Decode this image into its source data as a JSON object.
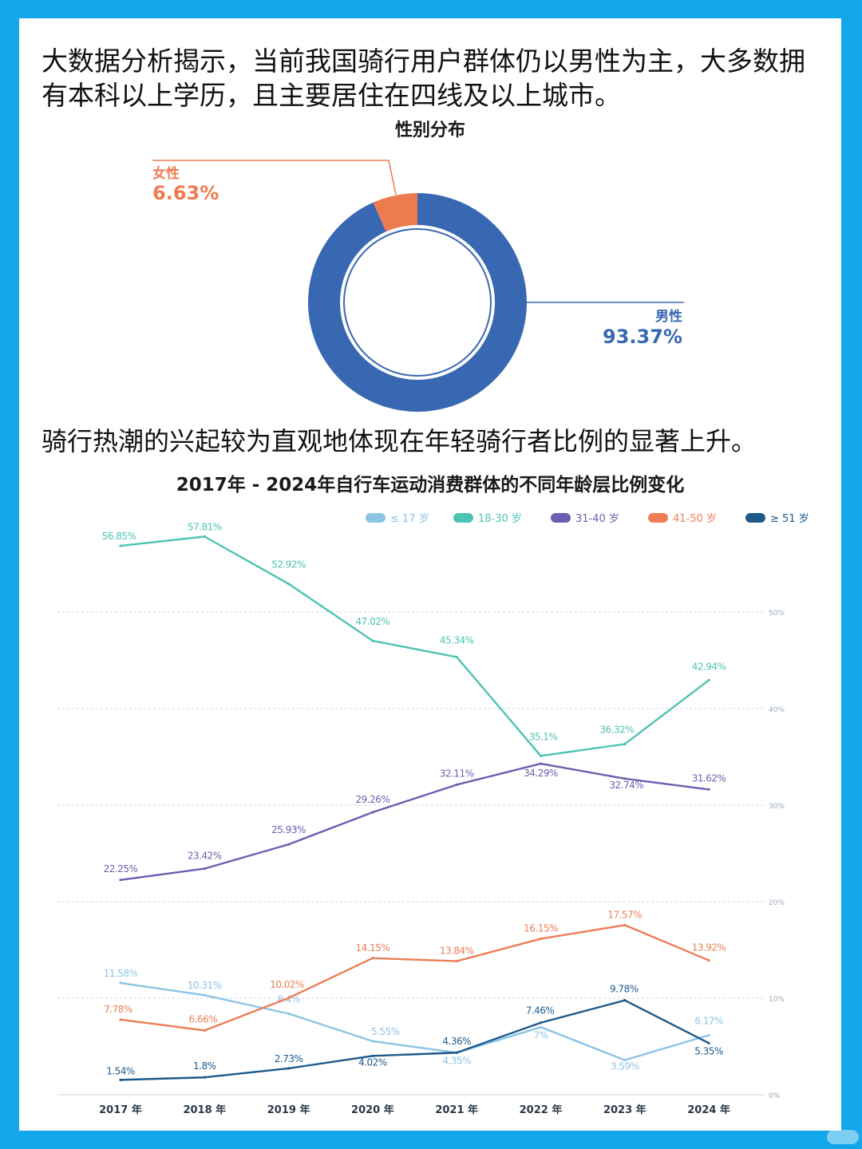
{
  "intro_text": "大数据分析揭示，当前我国骑行用户群体仍以男性为主，大多数拥有本科以上学历，且主要居住在四线及以上城市。",
  "intro_text_2": "骑行热潮的兴起较为直观地体现在年轻骑行者比例的显著上升。",
  "chart_data": [
    {
      "type": "pie",
      "title": "性别分布",
      "donut": true,
      "categories": [
        "男性",
        "女性"
      ],
      "values": [
        93.37,
        6.63
      ],
      "value_labels": [
        "93.37%",
        "6.63%"
      ],
      "colors": [
        "#3868b2",
        "#ee7b50"
      ]
    },
    {
      "type": "line",
      "title": "2017年 - 2024年自行车运动消费群体的不同年龄层比例变化",
      "categories": [
        "2017 年",
        "2018 年",
        "2019 年",
        "2020 年",
        "2021 年",
        "2022 年",
        "2023 年",
        "2024 年"
      ],
      "ylim": [
        0,
        60
      ],
      "yticks": [
        "0%",
        "10%",
        "20%",
        "30%",
        "40%",
        "50%"
      ],
      "grid": true,
      "legend_position": "top-right",
      "series": [
        {
          "name": "≤ 17 岁",
          "color": "#8cc4e6",
          "values": [
            11.58,
            10.31,
            8.4,
            5.55,
            4.35,
            7,
            3.59,
            6.17
          ],
          "labels": [
            "11.58%",
            "10.31%",
            "8.4%",
            "5.55%",
            "4.35%",
            "7%",
            "3.59%",
            "6.17%"
          ]
        },
        {
          "name": "18-30 岁",
          "color": "#4dc3b4",
          "values": [
            56.85,
            57.81,
            52.92,
            47.02,
            45.34,
            35.1,
            36.32,
            42.94
          ],
          "labels": [
            "56.85%",
            "57.81%",
            "52.92%",
            "47.02%",
            "45.34%",
            "35.1%",
            "36.32%",
            "42.94%"
          ]
        },
        {
          "name": "31-40 岁",
          "color": "#6a5fb0",
          "values": [
            22.25,
            23.42,
            25.93,
            29.26,
            32.11,
            34.29,
            32.74,
            31.62
          ],
          "labels": [
            "22.25%",
            "23.42%",
            "25.93%",
            "29.26%",
            "32.11%",
            "34.29%",
            "32.74%",
            "31.62%"
          ]
        },
        {
          "name": "41-50 岁",
          "color": "#ec7e57",
          "values": [
            7.78,
            6.66,
            10.02,
            14.15,
            13.84,
            16.15,
            17.57,
            13.92
          ],
          "labels": [
            "7.78%",
            "6.66%",
            "10.02%",
            "14.15%",
            "13.84%",
            "16.15%",
            "17.57%",
            "13.92%"
          ]
        },
        {
          "name": "≥ 51 岁",
          "color": "#1c5a8c",
          "values": [
            1.54,
            1.8,
            2.73,
            4.02,
            4.36,
            7.46,
            9.78,
            5.35
          ],
          "labels": [
            "1.54%",
            "1.8%",
            "2.73%",
            "4.02%",
            "4.36%",
            "7.46%",
            "9.78%",
            "5.35%"
          ]
        }
      ]
    }
  ]
}
